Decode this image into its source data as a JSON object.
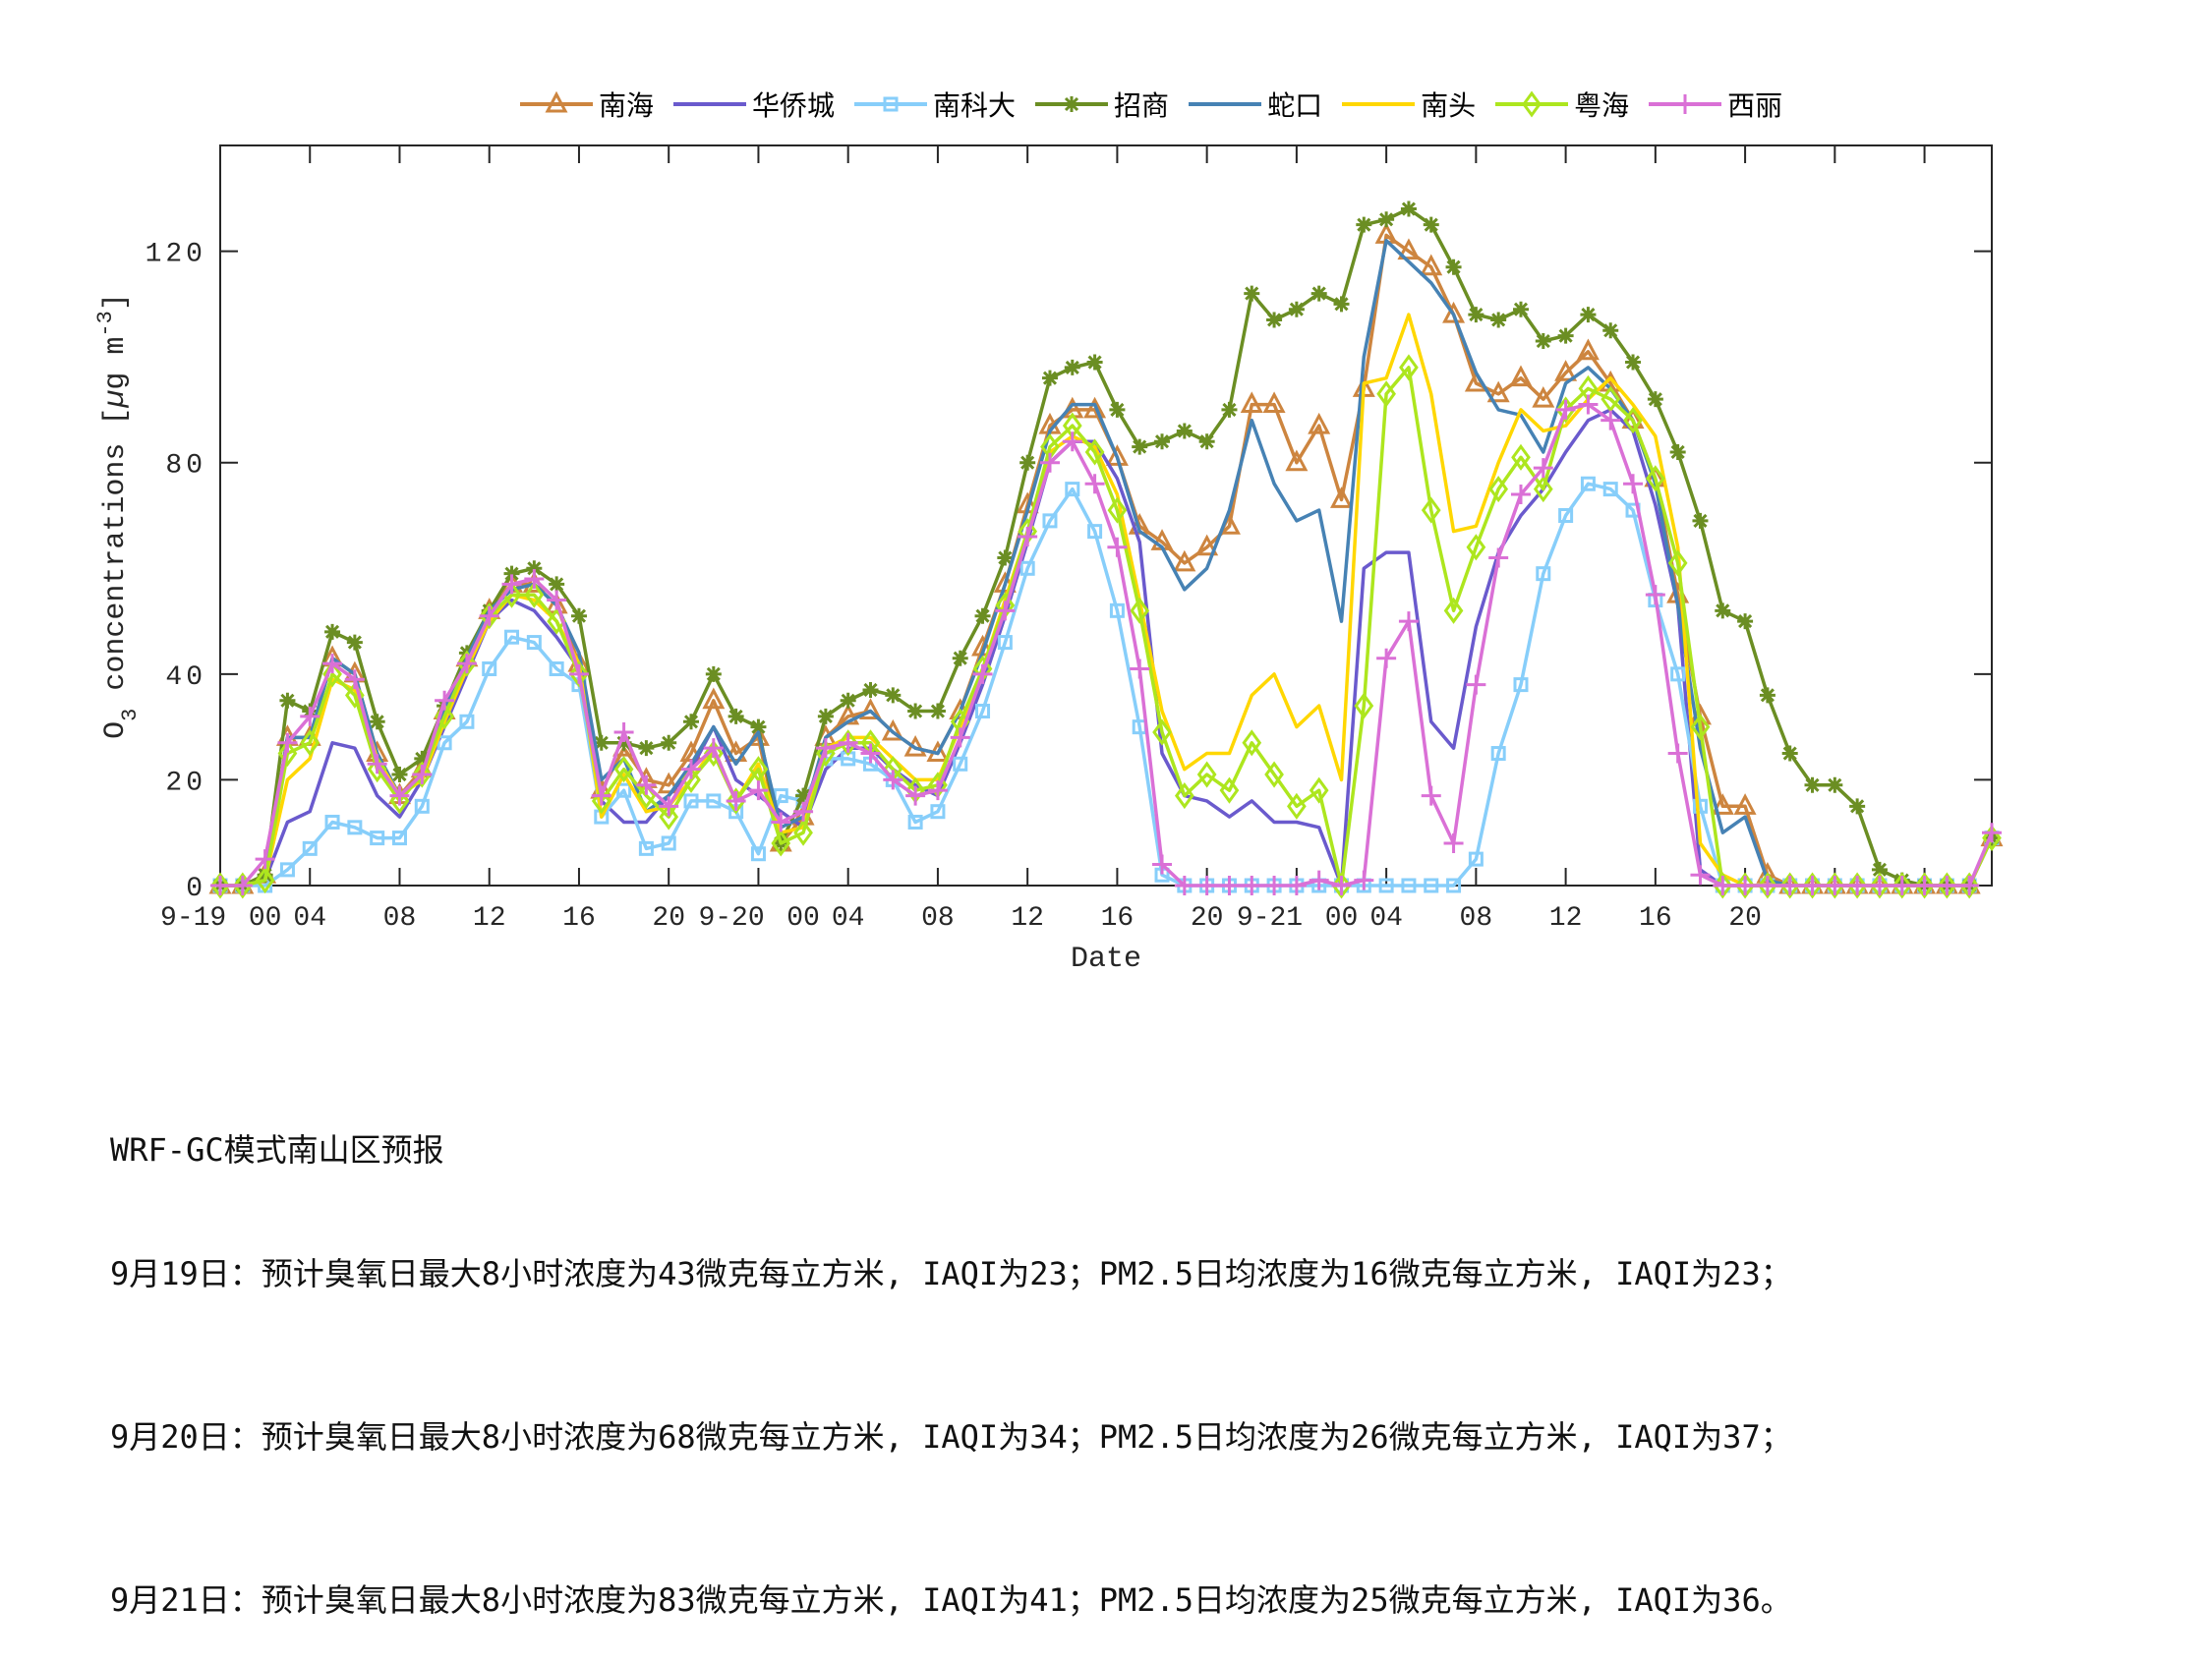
{
  "chart_data": {
    "type": "line",
    "title": "",
    "xlabel": "Date",
    "ylabel": "O_3 concentrations [µg m^-3]",
    "ylim": [
      0,
      140
    ],
    "yticks": [
      0,
      20,
      40,
      80,
      120
    ],
    "grid": false,
    "legend_position": "top-outside-horizontal",
    "x_hours": 80,
    "x_start": "9-19 00",
    "xtick_labels": [
      {
        "text": "9-19",
        "x_hour": -1.2
      },
      {
        "text": "00",
        "x_hour": 2.0
      },
      {
        "text": "04",
        "x_hour": 4
      },
      {
        "text": "08",
        "x_hour": 8
      },
      {
        "text": "12",
        "x_hour": 12
      },
      {
        "text": "16",
        "x_hour": 16
      },
      {
        "text": "20",
        "x_hour": 20
      },
      {
        "text": "9-20",
        "x_hour": 22.8
      },
      {
        "text": "00",
        "x_hour": 26.0
      },
      {
        "text": "04",
        "x_hour": 28
      },
      {
        "text": "08",
        "x_hour": 32
      },
      {
        "text": "12",
        "x_hour": 36
      },
      {
        "text": "16",
        "x_hour": 40
      },
      {
        "text": "20",
        "x_hour": 44
      },
      {
        "text": "9-21",
        "x_hour": 46.8
      },
      {
        "text": "00",
        "x_hour": 50.0
      },
      {
        "text": "04",
        "x_hour": 52
      },
      {
        "text": "08",
        "x_hour": 56
      },
      {
        "text": "12",
        "x_hour": 60
      },
      {
        "text": "16",
        "x_hour": 64
      },
      {
        "text": "20",
        "x_hour": 68
      }
    ],
    "xtick_positions": [
      4,
      8,
      12,
      16,
      20,
      24,
      28,
      32,
      36,
      40,
      44,
      48,
      52,
      56,
      60,
      64,
      68,
      72,
      76
    ],
    "series": [
      {
        "name": "南海",
        "color": "#CD853F",
        "marker": "triangle",
        "values": [
          0,
          0,
          2,
          28,
          28,
          43,
          40,
          25,
          17,
          22,
          33,
          43,
          52,
          57,
          57,
          53,
          42,
          18,
          26,
          20,
          19,
          25,
          35,
          25,
          28,
          8,
          13,
          28,
          32,
          33,
          29,
          26,
          25,
          33,
          45,
          57,
          72,
          87,
          90,
          90,
          81,
          68,
          65,
          61,
          64,
          68,
          91,
          91,
          80,
          87,
          73,
          94,
          123,
          120,
          117,
          108,
          95,
          93,
          96,
          92,
          97,
          101,
          95,
          88,
          77,
          55,
          32,
          15,
          15,
          2,
          0,
          0,
          0,
          0,
          0,
          0,
          0,
          0,
          0,
          9
        ]
      },
      {
        "name": "华侨城",
        "color": "#6A5ACD",
        "marker": "none",
        "values": [
          0,
          0,
          1,
          12,
          14,
          27,
          26,
          17,
          13,
          20,
          30,
          40,
          50,
          54,
          52,
          47,
          41,
          16,
          12,
          12,
          17,
          22,
          30,
          20,
          17,
          14,
          11,
          22,
          26,
          26,
          22,
          19,
          17,
          27,
          38,
          51,
          65,
          80,
          84,
          84,
          77,
          65,
          25,
          17,
          16,
          13,
          16,
          12,
          12,
          11,
          0,
          60,
          63,
          63,
          31,
          26,
          49,
          63,
          70,
          75,
          82,
          88,
          90,
          86,
          72,
          53,
          3,
          0,
          0,
          0,
          0,
          0,
          0,
          0,
          0,
          0,
          0,
          0,
          0,
          9
        ]
      },
      {
        "name": "南科大",
        "color": "#87CEFA",
        "marker": "square",
        "values": [
          0,
          0,
          0,
          3,
          7,
          12,
          11,
          9,
          9,
          15,
          27,
          31,
          41,
          47,
          46,
          41,
          38,
          13,
          18,
          7,
          8,
          16,
          16,
          14,
          6,
          17,
          16,
          24,
          24,
          23,
          20,
          12,
          14,
          23,
          33,
          46,
          60,
          69,
          75,
          67,
          52,
          30,
          2,
          0,
          0,
          0,
          0,
          0,
          0,
          0,
          0,
          0,
          0,
          0,
          0,
          0,
          5,
          25,
          38,
          59,
          70,
          76,
          75,
          71,
          54,
          40,
          15,
          0,
          0,
          0,
          0,
          0,
          0,
          0,
          0,
          0,
          0,
          0,
          0,
          9
        ]
      },
      {
        "name": "招商",
        "color": "#6B8E23",
        "marker": "star",
        "values": [
          0,
          0,
          2,
          35,
          33,
          48,
          46,
          31,
          21,
          24,
          34,
          44,
          52,
          59,
          60,
          57,
          51,
          27,
          27,
          26,
          27,
          31,
          40,
          32,
          30,
          8,
          17,
          32,
          35,
          37,
          36,
          33,
          33,
          43,
          51,
          62,
          80,
          96,
          98,
          99,
          90,
          83,
          84,
          86,
          84,
          90,
          112,
          107,
          109,
          112,
          110,
          125,
          126,
          128,
          125,
          117,
          108,
          107,
          109,
          103,
          104,
          108,
          105,
          99,
          92,
          82,
          69,
          52,
          50,
          36,
          25,
          19,
          19,
          15,
          3,
          1,
          0,
          0,
          0,
          9
        ]
      },
      {
        "name": "蛇口",
        "color": "#4682B4",
        "marker": "none",
        "values": [
          0,
          0,
          1,
          28,
          28,
          43,
          40,
          25,
          17,
          21,
          33,
          43,
          52,
          56,
          57,
          53,
          44,
          20,
          24,
          14,
          17,
          23,
          30,
          23,
          29,
          11,
          13,
          28,
          31,
          33,
          29,
          26,
          25,
          33,
          44,
          57,
          71,
          86,
          91,
          91,
          81,
          67,
          64,
          56,
          60,
          71,
          88,
          76,
          69,
          71,
          50,
          100,
          122,
          118,
          114,
          108,
          97,
          90,
          89,
          82,
          95,
          98,
          94,
          88,
          76,
          53,
          26,
          10,
          13,
          1,
          0,
          0,
          0,
          0,
          0,
          0,
          0,
          0,
          0,
          9
        ]
      },
      {
        "name": "南头",
        "color": "#FFD700",
        "marker": "none",
        "values": [
          0,
          0,
          1,
          20,
          24,
          39,
          37,
          24,
          17,
          20,
          31,
          41,
          50,
          55,
          54,
          50,
          42,
          13,
          21,
          14,
          15,
          20,
          26,
          16,
          23,
          10,
          11,
          26,
          28,
          28,
          24,
          20,
          20,
          30,
          41,
          54,
          67,
          82,
          85,
          83,
          74,
          54,
          33,
          22,
          25,
          25,
          36,
          40,
          30,
          34,
          20,
          95,
          96,
          108,
          93,
          67,
          68,
          80,
          90,
          86,
          87,
          92,
          96,
          91,
          85,
          64,
          8,
          2,
          0,
          0,
          0,
          0,
          0,
          0,
          0,
          0,
          0,
          0,
          0,
          9
        ]
      },
      {
        "name": "粤海",
        "color": "#ADE61E",
        "marker": "diamond",
        "values": [
          0,
          0,
          1,
          25,
          27,
          40,
          36,
          22,
          16,
          21,
          32,
          42,
          51,
          55,
          55,
          50,
          40,
          16,
          22,
          17,
          13,
          20,
          25,
          16,
          22,
          8,
          10,
          25,
          27,
          27,
          22,
          18,
          19,
          31,
          41,
          53,
          67,
          83,
          87,
          82,
          71,
          52,
          29,
          17,
          21,
          18,
          27,
          21,
          15,
          18,
          0,
          34,
          93,
          98,
          71,
          52,
          64,
          75,
          81,
          75,
          90,
          94,
          92,
          88,
          77,
          61,
          30,
          0,
          0,
          0,
          0,
          0,
          0,
          0,
          0,
          0,
          0,
          0,
          0,
          9
        ]
      },
      {
        "name": "西丽",
        "color": "#DA70D6",
        "marker": "plus",
        "values": [
          0,
          0,
          5,
          27,
          32,
          42,
          39,
          23,
          17,
          21,
          35,
          42,
          51,
          57,
          58,
          54,
          40,
          17,
          29,
          19,
          15,
          22,
          26,
          16,
          18,
          12,
          14,
          26,
          27,
          25,
          20,
          17,
          18,
          28,
          40,
          52,
          66,
          80,
          84,
          76,
          64,
          41,
          4,
          0,
          0,
          0,
          0,
          0,
          0,
          1,
          0,
          1,
          43,
          50,
          17,
          8,
          38,
          62,
          74,
          79,
          90,
          91,
          88,
          76,
          55,
          25,
          2,
          0,
          0,
          0,
          0,
          0,
          0,
          0,
          0,
          0,
          0,
          0,
          0,
          10
        ]
      }
    ]
  },
  "legend": {
    "items": [
      {
        "label": "南海",
        "color": "#CD853F",
        "marker": "triangle"
      },
      {
        "label": "华侨城",
        "color": "#6A5ACD",
        "marker": "none"
      },
      {
        "label": "南科大",
        "color": "#87CEFA",
        "marker": "square"
      },
      {
        "label": "招商",
        "color": "#6B8E23",
        "marker": "star"
      },
      {
        "label": "蛇口",
        "color": "#4682B4",
        "marker": "none"
      },
      {
        "label": "南头",
        "color": "#FFD700",
        "marker": "none"
      },
      {
        "label": "粤海",
        "color": "#ADE61E",
        "marker": "diamond"
      },
      {
        "label": "西丽",
        "color": "#DA70D6",
        "marker": "plus"
      }
    ]
  },
  "axes": {
    "ylabel_main": "O",
    "ylabel_sub": "3",
    "ylabel_rest": " concentrations [",
    "ylabel_mu": "µ",
    "ylabel_unit": "g m",
    "ylabel_sup": "-3",
    "ylabel_close": "]",
    "xlabel": "Date"
  },
  "notes": {
    "title": "WRF-GC模式南山区预报",
    "lines": [
      "9月19日：预计臭氧日最大8小时浓度为43微克每立方米, IAQI为23；PM2.5日均浓度为16微克每立方米, IAQI为23；",
      "9月20日：预计臭氧日最大8小时浓度为68微克每立方米, IAQI为34；PM2.5日均浓度为26微克每立方米, IAQI为37；",
      "9月21日：预计臭氧日最大8小时浓度为83微克每立方米, IAQI为41；PM2.5日均浓度为25微克每立方米, IAQI为36。"
    ]
  }
}
